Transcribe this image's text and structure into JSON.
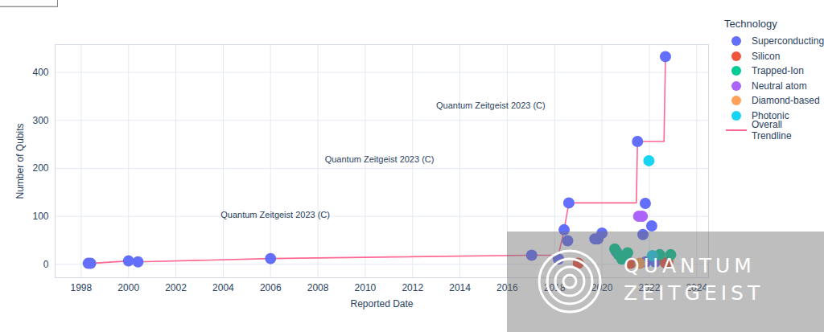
{
  "chart_data": {
    "type": "scatter",
    "xlabel": "Reported Date",
    "ylabel": "Number of Qubits",
    "legend_title": "Technology",
    "legend": "right",
    "grid": true,
    "xlim": [
      1996.9,
      2024.5
    ],
    "xticks": [
      1998,
      2000,
      2002,
      2004,
      2006,
      2008,
      2010,
      2012,
      2014,
      2016,
      2018,
      2020,
      2022,
      2024
    ],
    "ylim": [
      -28,
      458
    ],
    "yticks": [
      0,
      100,
      200,
      300,
      400
    ],
    "series": [
      {
        "name": "Superconducting",
        "color": "#636efa",
        "marker": "circle",
        "x": [
          1998.3,
          1998.4,
          2000.0,
          2000.4,
          2006.0,
          2017.03,
          2018.16,
          2018.4,
          2018.55,
          2018.6,
          2019.7,
          2019.83,
          2020.0,
          2020.6,
          2021.5,
          2021.73,
          2021.83,
          2021.85,
          2022.1,
          2022.25,
          2022.68
        ],
        "values": [
          2,
          2,
          7,
          5,
          12,
          19,
          11,
          72,
          49,
          128,
          53,
          53,
          65,
          27,
          256,
          62,
          127,
          5,
          80,
          5,
          433
        ]
      },
      {
        "name": "Silicon",
        "color": "#ef553b",
        "marker": "circle",
        "x": [
          2019.0,
          2021.2,
          2022.68,
          2022.78
        ],
        "values": [
          2,
          2,
          3,
          5
        ]
      },
      {
        "name": "Trapped-Ion",
        "color": "#00cc96",
        "marker": "circle",
        "x": [
          2020.54,
          2020.7,
          2020.84,
          2021.08,
          2022.44,
          2022.9
        ],
        "values": [
          32,
          20,
          11,
          24,
          20,
          20
        ]
      },
      {
        "name": "Neutral atom",
        "color": "#ab63fa",
        "marker": "circle",
        "x": [
          2021.55,
          2021.7
        ],
        "values": [
          100,
          100
        ]
      },
      {
        "name": "Diamond-based",
        "color": "#ffa15a",
        "marker": "circle",
        "x": [
          2021.6
        ],
        "values": [
          2
        ]
      },
      {
        "name": "Photonic",
        "color": "#19d3f3",
        "marker": "circle",
        "x": [
          2021.98,
          2022.13
        ],
        "values": [
          216,
          18
        ]
      },
      {
        "name": "Overall Trendline",
        "color": "#ff6692",
        "type": "line",
        "x": [
          1998.3,
          1998.4,
          2000.0,
          2000.4,
          2006.0,
          2017.03,
          2018.16,
          2018.4,
          2018.6,
          2021.45,
          2021.5,
          2022.62,
          2022.68
        ],
        "values": [
          2,
          2,
          7,
          5,
          12,
          19,
          19,
          72,
          128,
          128,
          256,
          256,
          433
        ]
      }
    ],
    "annotations": [
      {
        "text": "Quantum Zeitgeist 2023 (C)",
        "x": 2006.2,
        "y": 102
      },
      {
        "text": "Quantum Zeitgeist 2023 (C)",
        "x": 2010.6,
        "y": 218
      },
      {
        "text": "Quantum Zeitgeist 2023 (C)",
        "x": 2015.3,
        "y": 331
      }
    ],
    "logo_text": [
      "QUANTUM",
      "ZEITGEIST"
    ]
  }
}
